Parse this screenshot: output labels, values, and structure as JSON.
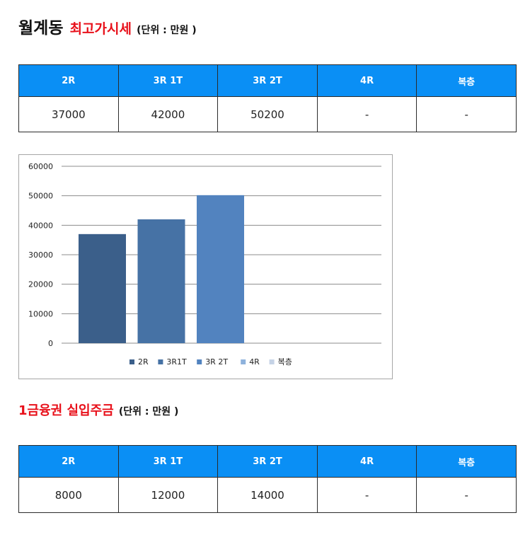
{
  "section1": {
    "area": "월계동",
    "title": "최고가시세",
    "unit": "(단위 : 만원 )",
    "headers": [
      "2R",
      "3R 1T",
      "3R 2T",
      "4R",
      "복층"
    ],
    "values": [
      "37000",
      "42000",
      "50200",
      "-",
      "-"
    ]
  },
  "section2": {
    "title": "1금융권 실입주금",
    "unit": "(단위 : 만원 )",
    "headers": [
      "2R",
      "3R 1T",
      "3R 2T",
      "4R",
      "복층"
    ],
    "values": [
      "8000",
      "12000",
      "14000",
      "-",
      "-"
    ]
  },
  "chart_data": {
    "type": "bar",
    "categories": [
      "2R",
      "3R1T",
      "3R 2T",
      "4R",
      "복층"
    ],
    "values": [
      37000,
      42000,
      50200,
      null,
      null
    ],
    "colors": [
      "#3b5f8a",
      "#4672a5",
      "#5283bf",
      "#8eb2dc",
      "#c6d3e6"
    ],
    "ylim": [
      0,
      60000
    ],
    "yticks": [
      "0",
      "10000",
      "20000",
      "30000",
      "40000",
      "50000",
      "60000"
    ],
    "grid": true,
    "legend_position": "bottom"
  }
}
